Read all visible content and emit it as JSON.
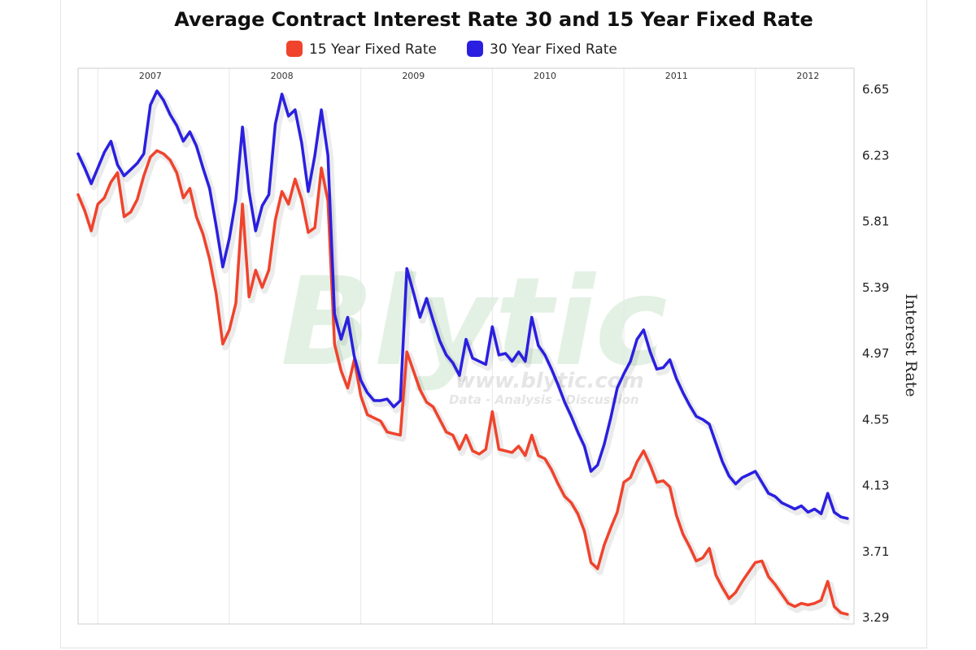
{
  "chart_data": {
    "type": "line",
    "title": "Average Contract Interest Rate 30 and 15 Year Fixed Rate",
    "ylabel": "Interest Rate",
    "xlabel": "",
    "x_ticks": [
      "2007",
      "2008",
      "2009",
      "2010",
      "2011",
      "2012"
    ],
    "x_tick_positions": [
      2007.0,
      2008.0,
      2009.0,
      2010.0,
      2011.0,
      2012.0
    ],
    "y_ticks": [
      "6.65",
      "6.23",
      "5.81",
      "5.39",
      "4.97",
      "4.55",
      "4.13",
      "3.71",
      "3.29"
    ],
    "xlim": [
      2006.45,
      2012.35
    ],
    "ylim": [
      3.29,
      6.65
    ],
    "grid": "vertical",
    "legend_position": "top",
    "watermark": {
      "brand": "Blytic",
      "url": "www.blytic.com",
      "tagline": "Data - Analysis - Discussion"
    },
    "series": [
      {
        "name": "15 Year Fixed Rate",
        "color": "#f0432c",
        "x": [
          2006.45,
          2006.5,
          2006.55,
          2006.6,
          2006.65,
          2006.7,
          2006.75,
          2006.8,
          2006.85,
          2006.9,
          2006.95,
          2007.0,
          2007.05,
          2007.1,
          2007.15,
          2007.2,
          2007.25,
          2007.3,
          2007.35,
          2007.4,
          2007.45,
          2007.5,
          2007.55,
          2007.6,
          2007.65,
          2007.7,
          2007.75,
          2007.8,
          2007.85,
          2007.9,
          2007.95,
          2008.0,
          2008.05,
          2008.1,
          2008.15,
          2008.2,
          2008.25,
          2008.3,
          2008.35,
          2008.4,
          2008.45,
          2008.5,
          2008.55,
          2008.6,
          2008.65,
          2008.7,
          2008.75,
          2008.8,
          2008.85,
          2008.9,
          2008.95,
          2009.0,
          2009.05,
          2009.1,
          2009.15,
          2009.2,
          2009.25,
          2009.3,
          2009.35,
          2009.4,
          2009.45,
          2009.5,
          2009.55,
          2009.6,
          2009.65,
          2009.7,
          2009.75,
          2009.8,
          2009.85,
          2009.9,
          2009.95,
          2010.0,
          2010.05,
          2010.1,
          2010.15,
          2010.2,
          2010.25,
          2010.3,
          2010.35,
          2010.4,
          2010.45,
          2010.5,
          2010.55,
          2010.6,
          2010.65,
          2010.7,
          2010.75,
          2010.8,
          2010.85,
          2010.9,
          2010.95,
          2011.0,
          2011.05,
          2011.1,
          2011.15,
          2011.2,
          2011.25,
          2011.3,
          2011.35,
          2011.4,
          2011.45,
          2011.5,
          2011.55,
          2011.6,
          2011.65,
          2011.7,
          2011.75,
          2011.8,
          2011.85,
          2011.9,
          2011.95,
          2012.0,
          2012.05,
          2012.1,
          2012.15,
          2012.2,
          2012.25,
          2012.3
        ],
        "values": [
          5.98,
          5.88,
          5.75,
          5.92,
          5.96,
          6.06,
          6.12,
          5.84,
          5.87,
          5.95,
          6.1,
          6.22,
          6.26,
          6.24,
          6.2,
          6.12,
          5.96,
          6.02,
          5.84,
          5.73,
          5.57,
          5.35,
          5.03,
          5.12,
          5.29,
          5.92,
          5.33,
          5.5,
          5.39,
          5.5,
          5.82,
          6.0,
          5.92,
          6.08,
          5.95,
          5.74,
          5.77,
          6.15,
          5.94,
          5.03,
          4.86,
          4.75,
          4.93,
          4.7,
          4.58,
          4.56,
          4.54,
          4.47,
          4.46,
          4.45,
          4.98,
          4.86,
          4.74,
          4.66,
          4.63,
          4.55,
          4.47,
          4.45,
          4.36,
          4.45,
          4.35,
          4.33,
          4.36,
          4.6,
          4.36,
          4.35,
          4.34,
          4.38,
          4.32,
          4.45,
          4.32,
          4.3,
          4.23,
          4.14,
          4.06,
          4.02,
          3.95,
          3.84,
          3.64,
          3.6,
          3.75,
          3.86,
          3.96,
          4.15,
          4.18,
          4.28,
          4.35,
          4.26,
          4.15,
          4.16,
          4.12,
          3.94,
          3.82,
          3.74,
          3.65,
          3.67,
          3.73,
          3.56,
          3.48,
          3.41,
          3.45,
          3.52,
          3.58,
          3.64,
          3.65,
          3.55,
          3.5,
          3.44,
          3.38,
          3.36,
          3.38,
          3.37,
          3.38,
          3.4,
          3.52,
          3.36,
          3.32,
          3.31
        ]
      },
      {
        "name": "30 Year Fixed Rate",
        "color": "#2a1fe0",
        "x": [
          2006.45,
          2006.5,
          2006.55,
          2006.6,
          2006.65,
          2006.7,
          2006.75,
          2006.8,
          2006.85,
          2006.9,
          2006.95,
          2007.0,
          2007.05,
          2007.1,
          2007.15,
          2007.2,
          2007.25,
          2007.3,
          2007.35,
          2007.4,
          2007.45,
          2007.5,
          2007.55,
          2007.6,
          2007.65,
          2007.7,
          2007.75,
          2007.8,
          2007.85,
          2007.9,
          2007.95,
          2008.0,
          2008.05,
          2008.1,
          2008.15,
          2008.2,
          2008.25,
          2008.3,
          2008.35,
          2008.4,
          2008.45,
          2008.5,
          2008.55,
          2008.6,
          2008.65,
          2008.7,
          2008.75,
          2008.8,
          2008.85,
          2008.9,
          2008.95,
          2009.0,
          2009.05,
          2009.1,
          2009.15,
          2009.2,
          2009.25,
          2009.3,
          2009.35,
          2009.4,
          2009.45,
          2009.5,
          2009.55,
          2009.6,
          2009.65,
          2009.7,
          2009.75,
          2009.8,
          2009.85,
          2009.9,
          2009.95,
          2010.0,
          2010.05,
          2010.1,
          2010.15,
          2010.2,
          2010.25,
          2010.3,
          2010.35,
          2010.4,
          2010.45,
          2010.5,
          2010.55,
          2010.6,
          2010.65,
          2010.7,
          2010.75,
          2010.8,
          2010.85,
          2010.9,
          2010.95,
          2011.0,
          2011.05,
          2011.1,
          2011.15,
          2011.2,
          2011.25,
          2011.3,
          2011.35,
          2011.4,
          2011.45,
          2011.5,
          2011.55,
          2011.6,
          2011.65,
          2011.7,
          2011.75,
          2011.8,
          2011.85,
          2011.9,
          2011.95,
          2012.0,
          2012.05,
          2012.1,
          2012.15,
          2012.2,
          2012.25,
          2012.3
        ],
        "values": [
          6.24,
          6.15,
          6.05,
          6.15,
          6.25,
          6.32,
          6.17,
          6.1,
          6.14,
          6.18,
          6.24,
          6.55,
          6.64,
          6.58,
          6.49,
          6.42,
          6.32,
          6.38,
          6.29,
          6.15,
          6.02,
          5.78,
          5.52,
          5.7,
          5.95,
          6.41,
          6.0,
          5.75,
          5.91,
          5.98,
          6.43,
          6.62,
          6.48,
          6.52,
          6.31,
          6.0,
          6.23,
          6.52,
          6.23,
          5.22,
          5.06,
          5.2,
          4.95,
          4.8,
          4.72,
          4.67,
          4.67,
          4.68,
          4.63,
          4.67,
          5.51,
          5.36,
          5.2,
          5.32,
          5.18,
          5.05,
          4.96,
          4.91,
          4.83,
          5.06,
          4.94,
          4.92,
          4.9,
          5.14,
          4.96,
          4.97,
          4.92,
          4.98,
          4.92,
          5.2,
          5.02,
          4.96,
          4.87,
          4.77,
          4.66,
          4.57,
          4.47,
          4.38,
          4.22,
          4.26,
          4.39,
          4.56,
          4.75,
          4.84,
          4.92,
          5.06,
          5.12,
          4.98,
          4.87,
          4.88,
          4.93,
          4.81,
          4.72,
          4.64,
          4.57,
          4.55,
          4.52,
          4.4,
          4.28,
          4.19,
          4.14,
          4.18,
          4.2,
          4.22,
          4.15,
          4.08,
          4.06,
          4.02,
          4.0,
          3.98,
          4.0,
          3.96,
          3.98,
          3.95,
          4.08,
          3.96,
          3.93,
          3.92
        ]
      }
    ]
  }
}
